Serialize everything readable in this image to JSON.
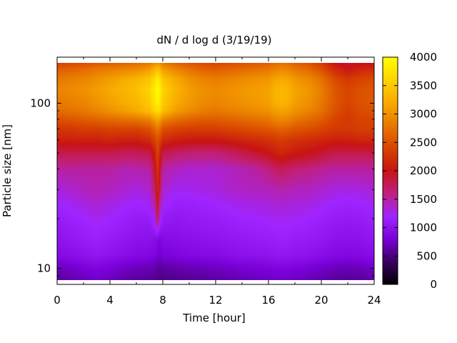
{
  "chart_data": {
    "type": "heatmap",
    "title": "dN / d log d (3/19/19)",
    "xlabel": "Time [hour]",
    "ylabel": "Particle size [nm]",
    "xlim": [
      0,
      24
    ],
    "ylim": [
      8,
      190
    ],
    "y_scale": "log",
    "x_ticks": [
      0,
      4,
      8,
      12,
      16,
      20,
      24
    ],
    "x_tick_labels": [
      "0",
      "4",
      "8",
      "12",
      "16",
      "20",
      "24"
    ],
    "y_ticks": [
      10,
      100
    ],
    "y_tick_labels": [
      "10",
      "100"
    ],
    "colorbar": {
      "range": [
        0,
        4000
      ],
      "ticks": [
        0,
        500,
        1000,
        1500,
        2000,
        2500,
        3000,
        3500,
        4000
      ],
      "tick_labels": [
        "0",
        "500",
        "1000",
        "1500",
        "2000",
        "2500",
        "3000",
        "3500",
        "4000"
      ],
      "colormap": "gnuplot-pm3d",
      "stops": [
        "#000000",
        "#3a0060",
        "#7a00d8",
        "#a024ff",
        "#c02080",
        "#c81414",
        "#d84400",
        "#e87800",
        "#f8aa00",
        "#ffd400",
        "#ffff00"
      ]
    },
    "time_hours": [
      0,
      1,
      2,
      3,
      4,
      5,
      6,
      7,
      7.4,
      7.6,
      7.8,
      8,
      9,
      10,
      11,
      12,
      13,
      14,
      15,
      16,
      16.5,
      17,
      17.5,
      18,
      19,
      20,
      21,
      22,
      23,
      24
    ],
    "size_nm": [
      8.5,
      10,
      12,
      15,
      20,
      25,
      30,
      40,
      50,
      60,
      70,
      80,
      90,
      100,
      120,
      140,
      160,
      180
    ],
    "values": [
      [
        600,
        650,
        700,
        750,
        700,
        650,
        600,
        580,
        560,
        520,
        500,
        520,
        550,
        580,
        600,
        620,
        650,
        680,
        700,
        720,
        740,
        750,
        740,
        720,
        700,
        650,
        600,
        580,
        600,
        650
      ],
      [
        700,
        750,
        800,
        850,
        800,
        750,
        700,
        680,
        650,
        600,
        580,
        620,
        650,
        680,
        700,
        720,
        750,
        780,
        800,
        820,
        840,
        850,
        840,
        820,
        800,
        750,
        700,
        680,
        700,
        750
      ],
      [
        900,
        950,
        1000,
        1050,
        1000,
        950,
        900,
        880,
        850,
        800,
        750,
        820,
        850,
        880,
        900,
        920,
        950,
        980,
        1000,
        1020,
        1040,
        1050,
        1040,
        1020,
        1000,
        950,
        900,
        880,
        900,
        950
      ],
      [
        1000,
        1050,
        1100,
        1150,
        1100,
        1050,
        1000,
        980,
        950,
        900,
        850,
        920,
        950,
        980,
        1000,
        1020,
        1050,
        1080,
        1100,
        1120,
        1140,
        1150,
        1140,
        1120,
        1100,
        1050,
        1000,
        980,
        1000,
        1050
      ],
      [
        1100,
        1150,
        1200,
        1250,
        1200,
        1150,
        1100,
        1100,
        1300,
        1700,
        1300,
        1100,
        1050,
        1080,
        1100,
        1120,
        1150,
        1180,
        1200,
        1220,
        1240,
        1250,
        1240,
        1220,
        1200,
        1150,
        1100,
        1080,
        1100,
        1150
      ],
      [
        1200,
        1250,
        1300,
        1350,
        1300,
        1250,
        1200,
        1250,
        1500,
        2000,
        1500,
        1250,
        1150,
        1150,
        1180,
        1200,
        1250,
        1280,
        1300,
        1320,
        1340,
        1350,
        1340,
        1320,
        1300,
        1250,
        1200,
        1180,
        1200,
        1250
      ],
      [
        1300,
        1350,
        1400,
        1450,
        1400,
        1350,
        1300,
        1350,
        1700,
        2200,
        1700,
        1350,
        1250,
        1250,
        1280,
        1300,
        1350,
        1380,
        1400,
        1420,
        1440,
        1450,
        1440,
        1420,
        1400,
        1350,
        1300,
        1280,
        1300,
        1350
      ],
      [
        1500,
        1500,
        1500,
        1500,
        1500,
        1450,
        1450,
        1500,
        1900,
        2300,
        1900,
        1500,
        1400,
        1350,
        1350,
        1350,
        1400,
        1450,
        1500,
        1600,
        1700,
        1750,
        1700,
        1650,
        1600,
        1550,
        1500,
        1500,
        1500,
        1500
      ],
      [
        1800,
        1800,
        1800,
        1800,
        1800,
        1750,
        1750,
        1800,
        2100,
        2400,
        2100,
        1800,
        1700,
        1650,
        1650,
        1650,
        1700,
        1800,
        1900,
        2000,
        2100,
        2150,
        2100,
        2050,
        2000,
        1900,
        1800,
        1800,
        1800,
        1800
      ],
      [
        2100,
        2100,
        2100,
        2100,
        2150,
        2100,
        2100,
        2200,
        2400,
        2500,
        2400,
        2200,
        2100,
        2050,
        2050,
        2050,
        2100,
        2150,
        2200,
        2250,
        2300,
        2350,
        2300,
        2250,
        2200,
        2150,
        2100,
        2100,
        2150,
        2150
      ],
      [
        2300,
        2300,
        2350,
        2350,
        2400,
        2400,
        2400,
        2500,
        2700,
        2800,
        2700,
        2500,
        2400,
        2350,
        2350,
        2350,
        2400,
        2450,
        2500,
        2550,
        2600,
        2650,
        2600,
        2550,
        2500,
        2400,
        2300,
        2300,
        2350,
        2350
      ],
      [
        2500,
        2550,
        2600,
        2650,
        2700,
        2750,
        2800,
        2900,
        3100,
        3200,
        3100,
        2900,
        2750,
        2650,
        2600,
        2600,
        2650,
        2700,
        2750,
        2800,
        2900,
        2950,
        2900,
        2800,
        2700,
        2600,
        2400,
        2300,
        2400,
        2400
      ],
      [
        2700,
        2750,
        2800,
        2900,
        3000,
        3100,
        3200,
        3400,
        3600,
        3700,
        3600,
        3400,
        3100,
        2950,
        2850,
        2800,
        2850,
        2900,
        2950,
        3000,
        3100,
        3150,
        3100,
        3000,
        2900,
        2750,
        2500,
        2350,
        2450,
        2500
      ],
      [
        2800,
        2850,
        2900,
        3000,
        3100,
        3200,
        3300,
        3500,
        3750,
        3900,
        3750,
        3500,
        3200,
        3050,
        2950,
        2900,
        2950,
        3000,
        3050,
        3100,
        3250,
        3300,
        3250,
        3100,
        3000,
        2800,
        2550,
        2400,
        2500,
        2550
      ],
      [
        2900,
        2950,
        3000,
        3100,
        3200,
        3300,
        3400,
        3600,
        3850,
        4000,
        3850,
        3600,
        3300,
        3100,
        3000,
        2950,
        3000,
        3050,
        3100,
        3150,
        3300,
        3350,
        3300,
        3150,
        3050,
        2850,
        2550,
        2400,
        2500,
        2550
      ],
      [
        2800,
        2850,
        2900,
        3000,
        3100,
        3200,
        3300,
        3450,
        3700,
        3850,
        3700,
        3450,
        3200,
        3000,
        2900,
        2850,
        2900,
        2950,
        3000,
        3050,
        3150,
        3200,
        3150,
        3050,
        2950,
        2750,
        2450,
        2300,
        2400,
        2450
      ],
      [
        2600,
        2650,
        2700,
        2800,
        2850,
        2900,
        2950,
        3100,
        3300,
        3400,
        3300,
        3100,
        2900,
        2750,
        2650,
        2600,
        2650,
        2700,
        2750,
        2800,
        2900,
        2950,
        2900,
        2800,
        2700,
        2500,
        2200,
        2050,
        2150,
        2200
      ],
      [
        2300,
        2350,
        2400,
        2450,
        2500,
        2550,
        2600,
        2700,
        2850,
        2900,
        2850,
        2700,
        2550,
        2450,
        2400,
        2350,
        2400,
        2450,
        2500,
        2550,
        2600,
        2650,
        2600,
        2550,
        2450,
        2250,
        1950,
        1800,
        1900,
        1950
      ]
    ]
  }
}
